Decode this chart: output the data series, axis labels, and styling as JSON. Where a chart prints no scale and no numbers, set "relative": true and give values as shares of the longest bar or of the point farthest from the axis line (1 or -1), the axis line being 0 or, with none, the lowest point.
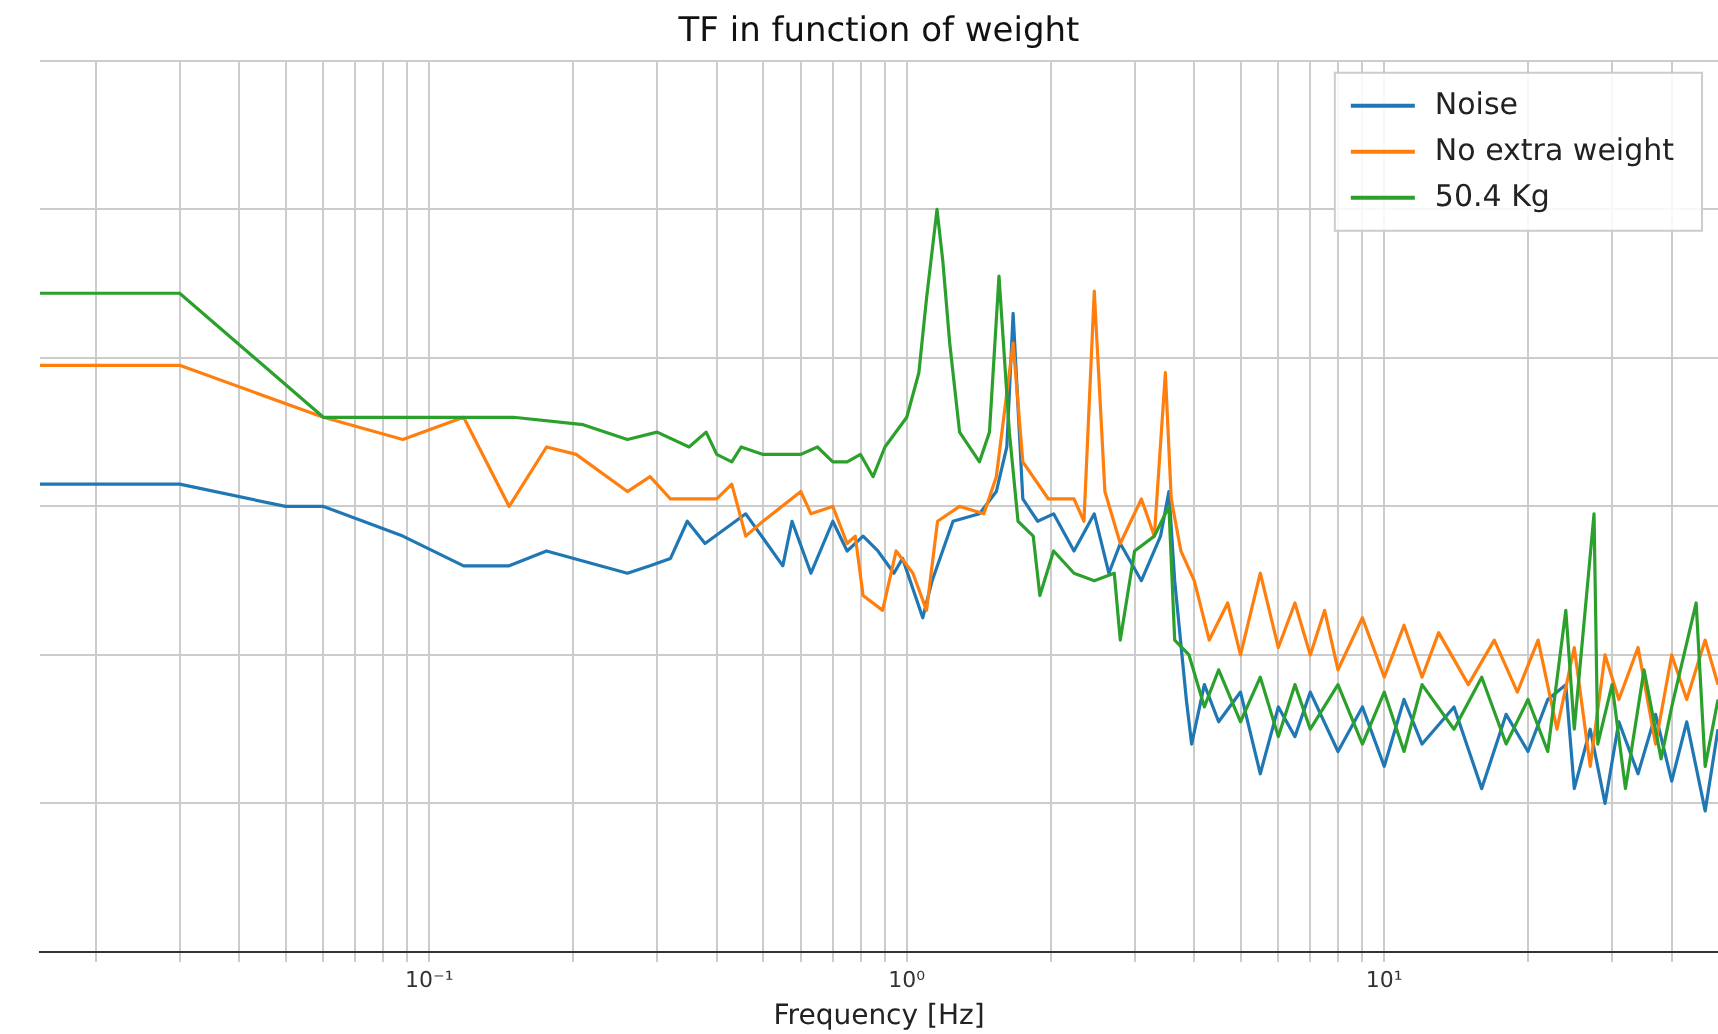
{
  "chart_data": {
    "type": "line",
    "title": "TF in function of weight",
    "xlabel": "Frequency [Hz]",
    "log": "x",
    "relative": true,
    "grid": true,
    "legend": "top right",
    "marker": "none",
    "line_style": "solid",
    "xlim": [
      0.0153,
      50
    ],
    "xticks": [
      {
        "value": 0.02,
        "label": null
      },
      {
        "value": 0.03,
        "label": null
      },
      {
        "value": 0.04,
        "label": null
      },
      {
        "value": 0.05,
        "label": null
      },
      {
        "value": 0.06,
        "label": null
      },
      {
        "value": 0.07,
        "label": null
      },
      {
        "value": 0.08,
        "label": null
      },
      {
        "value": 0.09,
        "label": null
      },
      {
        "value": 0.1,
        "label": "10⁻¹"
      },
      {
        "value": 0.2,
        "label": null
      },
      {
        "value": 0.3,
        "label": null
      },
      {
        "value": 0.4,
        "label": null
      },
      {
        "value": 0.5,
        "label": null
      },
      {
        "value": 0.6,
        "label": null
      },
      {
        "value": 0.7,
        "label": null
      },
      {
        "value": 0.8,
        "label": null
      },
      {
        "value": 0.9,
        "label": null
      },
      {
        "value": 1,
        "label": "10⁰"
      },
      {
        "value": 2,
        "label": null
      },
      {
        "value": 3,
        "label": null
      },
      {
        "value": 4,
        "label": null
      },
      {
        "value": 5,
        "label": null
      },
      {
        "value": 6,
        "label": null
      },
      {
        "value": 7,
        "label": null
      },
      {
        "value": 8,
        "label": null
      },
      {
        "value": 9,
        "label": null
      },
      {
        "value": 10,
        "label": "10¹"
      },
      {
        "value": 20,
        "label": null
      },
      {
        "value": 30,
        "label": null
      },
      {
        "value": 40,
        "label": null
      }
    ],
    "series": [
      {
        "name": "Noise",
        "color": "#1f77b4",
        "x": [
          0.0153,
          0.03,
          0.05,
          0.06,
          0.088,
          0.118,
          0.147,
          0.176,
          0.26,
          0.29,
          0.32,
          0.347,
          0.378,
          0.46,
          0.55,
          0.575,
          0.63,
          0.7,
          0.75,
          0.81,
          0.87,
          0.94,
          0.98,
          1.08,
          1.13,
          1.25,
          1.42,
          1.54,
          1.62,
          1.67,
          1.75,
          1.88,
          2.03,
          2.24,
          2.47,
          2.65,
          2.8,
          3.1,
          3.4,
          3.54,
          3.64,
          3.85,
          3.95,
          4.2,
          4.5,
          5,
          5.5,
          6,
          6.5,
          7,
          8,
          9,
          10,
          11,
          12,
          14,
          16,
          18,
          20,
          22,
          24,
          25,
          27,
          29,
          31,
          34,
          37,
          40,
          43,
          47,
          50
        ],
        "values": [
          0.63,
          0.63,
          0.6,
          0.6,
          0.56,
          0.52,
          0.52,
          0.54,
          0.51,
          0.52,
          0.53,
          0.58,
          0.55,
          0.59,
          0.52,
          0.58,
          0.51,
          0.58,
          0.54,
          0.56,
          0.54,
          0.51,
          0.53,
          0.45,
          0.5,
          0.58,
          0.59,
          0.62,
          0.68,
          0.86,
          0.61,
          0.58,
          0.59,
          0.54,
          0.59,
          0.51,
          0.55,
          0.5,
          0.56,
          0.62,
          0.5,
          0.34,
          0.28,
          0.36,
          0.31,
          0.35,
          0.24,
          0.33,
          0.29,
          0.35,
          0.27,
          0.33,
          0.25,
          0.34,
          0.28,
          0.33,
          0.22,
          0.32,
          0.27,
          0.34,
          0.36,
          0.22,
          0.3,
          0.2,
          0.31,
          0.24,
          0.32,
          0.23,
          0.31,
          0.19,
          0.3
        ]
      },
      {
        "name": "No extra weight",
        "color": "#ff7f0e",
        "x": [
          0.0153,
          0.03,
          0.06,
          0.088,
          0.118,
          0.147,
          0.176,
          0.203,
          0.26,
          0.29,
          0.32,
          0.4,
          0.43,
          0.46,
          0.5,
          0.6,
          0.63,
          0.7,
          0.75,
          0.78,
          0.81,
          0.89,
          0.95,
          1.03,
          1.1,
          1.16,
          1.29,
          1.45,
          1.54,
          1.67,
          1.75,
          1.98,
          2.24,
          2.35,
          2.47,
          2.6,
          2.8,
          3.1,
          3.3,
          3.48,
          3.58,
          3.75,
          4,
          4.3,
          4.7,
          5,
          5.5,
          6,
          6.5,
          7,
          7.5,
          8,
          9,
          10,
          11,
          12,
          13,
          15,
          17,
          19,
          21,
          23,
          25,
          27,
          29,
          31,
          34,
          37,
          40,
          43,
          47,
          50
        ],
        "values": [
          0.79,
          0.79,
          0.72,
          0.69,
          0.72,
          0.6,
          0.68,
          0.67,
          0.62,
          0.64,
          0.61,
          0.61,
          0.63,
          0.56,
          0.58,
          0.62,
          0.59,
          0.6,
          0.55,
          0.56,
          0.48,
          0.46,
          0.54,
          0.51,
          0.46,
          0.58,
          0.6,
          0.59,
          0.64,
          0.82,
          0.66,
          0.61,
          0.61,
          0.58,
          0.89,
          0.62,
          0.55,
          0.61,
          0.56,
          0.78,
          0.61,
          0.54,
          0.5,
          0.42,
          0.47,
          0.4,
          0.51,
          0.41,
          0.47,
          0.4,
          0.46,
          0.38,
          0.45,
          0.37,
          0.44,
          0.37,
          0.43,
          0.36,
          0.42,
          0.35,
          0.42,
          0.3,
          0.41,
          0.25,
          0.4,
          0.34,
          0.41,
          0.28,
          0.4,
          0.34,
          0.42,
          0.36
        ]
      },
      {
        "name": "50.4 Kg",
        "color": "#2ca02c",
        "x": [
          0.0153,
          0.03,
          0.06,
          0.15,
          0.21,
          0.26,
          0.3,
          0.35,
          0.38,
          0.4,
          0.43,
          0.45,
          0.5,
          0.55,
          0.6,
          0.65,
          0.7,
          0.75,
          0.8,
          0.85,
          0.9,
          1,
          1.06,
          1.1,
          1.157,
          1.19,
          1.23,
          1.29,
          1.42,
          1.49,
          1.56,
          1.64,
          1.71,
          1.84,
          1.9,
          2.03,
          2.24,
          2.47,
          2.72,
          2.8,
          3,
          3.3,
          3.54,
          3.64,
          3.9,
          4.2,
          4.5,
          5,
          5.5,
          6,
          6.5,
          7,
          8,
          9,
          10,
          11,
          12,
          14,
          16,
          18,
          20,
          22,
          24,
          25,
          27.5,
          28,
          30,
          32,
          35,
          38,
          40,
          45,
          47,
          50
        ],
        "values": [
          0.887,
          0.887,
          0.72,
          0.72,
          0.71,
          0.69,
          0.7,
          0.68,
          0.7,
          0.67,
          0.66,
          0.68,
          0.67,
          0.67,
          0.67,
          0.68,
          0.66,
          0.66,
          0.67,
          0.64,
          0.68,
          0.72,
          0.78,
          0.88,
          1,
          0.93,
          0.82,
          0.7,
          0.66,
          0.7,
          0.91,
          0.7,
          0.58,
          0.56,
          0.48,
          0.54,
          0.51,
          0.5,
          0.51,
          0.42,
          0.54,
          0.56,
          0.6,
          0.42,
          0.4,
          0.33,
          0.38,
          0.31,
          0.37,
          0.29,
          0.36,
          0.3,
          0.36,
          0.28,
          0.35,
          0.27,
          0.36,
          0.3,
          0.37,
          0.28,
          0.34,
          0.27,
          0.46,
          0.3,
          0.59,
          0.28,
          0.36,
          0.22,
          0.38,
          0.26,
          0.33,
          0.47,
          0.25,
          0.34
        ]
      }
    ]
  }
}
